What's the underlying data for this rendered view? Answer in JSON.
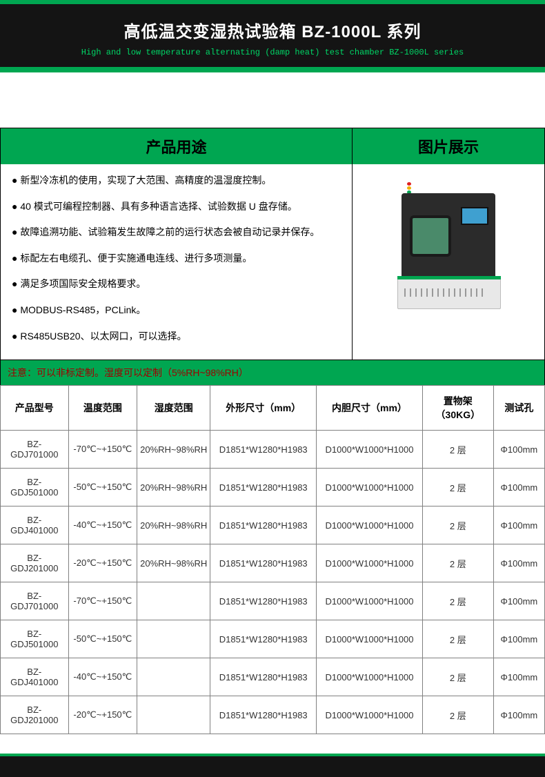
{
  "header": {
    "title_cn": "高低温交变湿热试验箱 BZ-1000L 系列",
    "title_en": "High and low temperature alternating (damp heat) test chamber BZ-1000L series"
  },
  "section_headers": {
    "usage": "产品用途",
    "image": "图片展示"
  },
  "features": [
    "新型冷冻机的使用，实现了大范围、高精度的温湿度控制。",
    "40 模式可编程控制器、具有多种语言选择、试验数据 U 盘存储。",
    "故障追溯功能、试验箱发生故障之前的运行状态会被自动记录并保存。",
    "标配左右电缆孔、便于实施通电连线、进行多项测量。",
    "满足多项国际安全规格要求。",
    "MODBUS-RS485，PCLink。",
    "RS485USB20、以太网口，可以选择。"
  ],
  "note": "注意：可以非标定制。湿度可以定制（5%RH~98%RH）",
  "table": {
    "columns": [
      "产品型号",
      "温度范围",
      "湿度范围",
      "外形尺寸（mm）",
      "内胆尺寸（mm）",
      "置物架（30KG）",
      "测试孔"
    ],
    "rows": [
      [
        "BZ-GDJ701000",
        "-70℃~+150℃",
        "20%RH~98%RH",
        "D1851*W1280*H1983",
        "D1000*W1000*H1000",
        "2 层",
        "Φ100mm"
      ],
      [
        "BZ-GDJ501000",
        "-50℃~+150℃",
        "20%RH~98%RH",
        "D1851*W1280*H1983",
        "D1000*W1000*H1000",
        "2 层",
        "Φ100mm"
      ],
      [
        "BZ-GDJ401000",
        "-40℃~+150℃",
        "20%RH~98%RH",
        "D1851*W1280*H1983",
        "D1000*W1000*H1000",
        "2 层",
        "Φ100mm"
      ],
      [
        "BZ-GDJ201000",
        "-20℃~+150℃",
        "20%RH~98%RH",
        "D1851*W1280*H1983",
        "D1000*W1000*H1000",
        "2 层",
        "Φ100mm"
      ],
      [
        "BZ-GDJ701000",
        "-70℃~+150℃",
        "",
        "D1851*W1280*H1983",
        "D1000*W1000*H1000",
        "2 层",
        "Φ100mm"
      ],
      [
        "BZ-GDJ501000",
        "-50℃~+150℃",
        "",
        "D1851*W1280*H1983",
        "D1000*W1000*H1000",
        "2 层",
        "Φ100mm"
      ],
      [
        "BZ-GDJ401000",
        "-40℃~+150℃",
        "",
        "D1851*W1280*H1983",
        "D1000*W1000*H1000",
        "2 层",
        "Φ100mm"
      ],
      [
        "BZ-GDJ201000",
        "-20℃~+150℃",
        "",
        "D1851*W1280*H1983",
        "D1000*W1000*H1000",
        "2 层",
        "Φ100mm"
      ]
    ]
  },
  "colors": {
    "brand_green": "#00a651",
    "header_bg": "#141414",
    "subtitle_green": "#00d666",
    "note_text": "#a00000",
    "border_gray": "#808080"
  },
  "typography": {
    "title_fontsize_pt": 18,
    "body_fontsize_pt": 10,
    "table_fontsize_pt": 10
  }
}
